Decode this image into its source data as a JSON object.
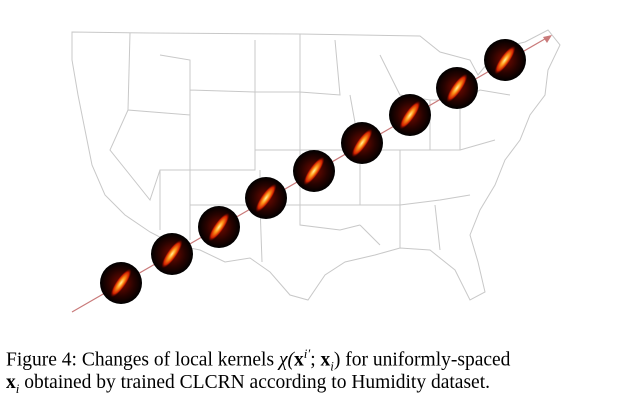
{
  "caption": {
    "line1": [
      "Figure 4: Changes of local kernels ",
      "χ(",
      "x",
      "i′",
      "; ",
      "x",
      "i",
      ") for uniformly-spaced"
    ],
    "line2": [
      "x",
      "i",
      " obtained by trained CLCRN according to Humidity dataset."
    ]
  }
}
